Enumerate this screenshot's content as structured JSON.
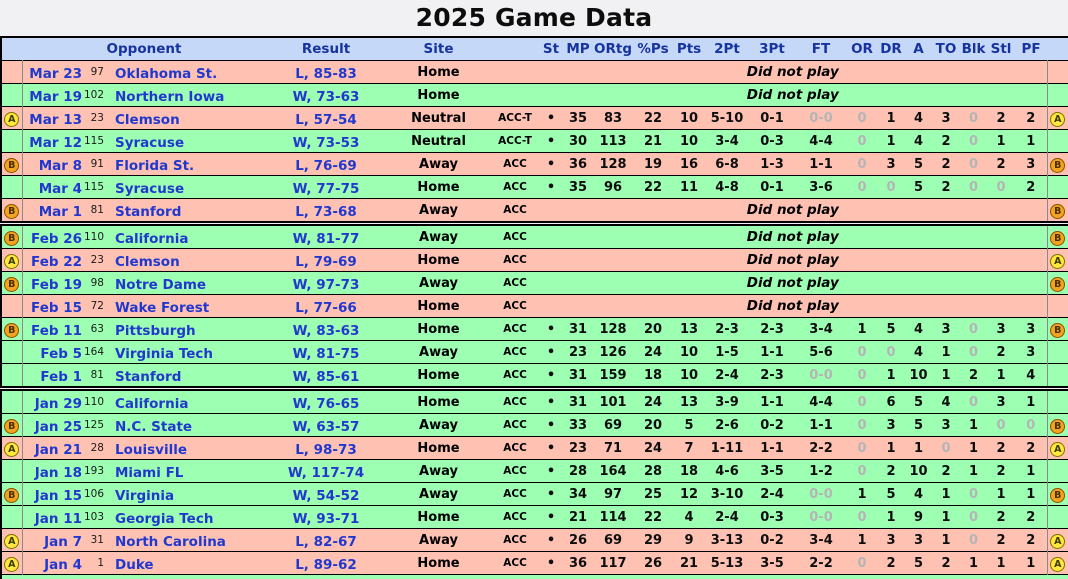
{
  "title": "2025 Game Data",
  "colors": {
    "win_row": "#9cffb2",
    "loss_row": "#ffc2b2",
    "header_bg": "#c6d8f8",
    "header_text": "#16339e",
    "link_blue": "#2138cf",
    "zero_gray": "#b5b5b5",
    "badge_a_bg": "#ffe73d",
    "badge_b_bg": "#f2a41f"
  },
  "table": {
    "headers": {
      "opponent": "Opponent",
      "result": "Result",
      "site": "Site",
      "stats": [
        "St",
        "MP",
        "ORtg",
        "%Ps",
        "Pts",
        "2Pt",
        "3Pt",
        "FT",
        "OR",
        "DR",
        "A",
        "TO",
        "Blk",
        "Stl",
        "PF"
      ]
    },
    "dnp_label": "Did not play",
    "rows": [
      {
        "badge": "",
        "date": "Mar 23",
        "rank": "97",
        "opponent": "Oklahoma St.",
        "result": "L, 85-83",
        "outcome": "loss",
        "site": "Home",
        "conf": "",
        "dnp": true,
        "month_start": false,
        "stats": []
      },
      {
        "badge": "",
        "date": "Mar 19",
        "rank": "102",
        "opponent": "Northern Iowa",
        "result": "W, 73-63",
        "outcome": "win",
        "site": "Home",
        "conf": "",
        "dnp": true,
        "month_start": false,
        "stats": []
      },
      {
        "badge": "A",
        "date": "Mar 13",
        "rank": "23",
        "opponent": "Clemson",
        "result": "L, 57-54",
        "outcome": "loss",
        "site": "Neutral",
        "conf": "ACC-T",
        "dnp": false,
        "month_start": false,
        "stats": [
          "•",
          "35",
          "83",
          "22",
          "10",
          "5-10",
          "0-1",
          "0-0",
          "0",
          "1",
          "4",
          "3",
          "0",
          "2",
          "2"
        ]
      },
      {
        "badge": "",
        "date": "Mar 12",
        "rank": "115",
        "opponent": "Syracuse",
        "result": "W, 73-53",
        "outcome": "win",
        "site": "Neutral",
        "conf": "ACC-T",
        "dnp": false,
        "month_start": false,
        "stats": [
          "•",
          "30",
          "113",
          "21",
          "10",
          "3-4",
          "0-3",
          "4-4",
          "0",
          "1",
          "4",
          "2",
          "0",
          "1",
          "1"
        ]
      },
      {
        "badge": "B",
        "date": "Mar 8",
        "rank": "91",
        "opponent": "Florida St.",
        "result": "L, 76-69",
        "outcome": "loss",
        "site": "Away",
        "conf": "ACC",
        "dnp": false,
        "month_start": false,
        "stats": [
          "•",
          "36",
          "128",
          "19",
          "16",
          "6-8",
          "1-3",
          "1-1",
          "0",
          "3",
          "5",
          "2",
          "0",
          "2",
          "3"
        ]
      },
      {
        "badge": "",
        "date": "Mar 4",
        "rank": "115",
        "opponent": "Syracuse",
        "result": "W, 77-75",
        "outcome": "win",
        "site": "Home",
        "conf": "ACC",
        "dnp": false,
        "month_start": false,
        "stats": [
          "•",
          "35",
          "96",
          "22",
          "11",
          "4-8",
          "0-1",
          "3-6",
          "0",
          "0",
          "5",
          "2",
          "0",
          "0",
          "2"
        ]
      },
      {
        "badge": "B",
        "date": "Mar 1",
        "rank": "81",
        "opponent": "Stanford",
        "result": "L, 73-68",
        "outcome": "loss",
        "site": "Away",
        "conf": "ACC",
        "dnp": true,
        "month_start": false,
        "stats": []
      },
      {
        "badge": "B",
        "date": "Feb 26",
        "rank": "110",
        "opponent": "California",
        "result": "W, 81-77",
        "outcome": "win",
        "site": "Away",
        "conf": "ACC",
        "dnp": true,
        "month_start": true,
        "stats": []
      },
      {
        "badge": "A",
        "date": "Feb 22",
        "rank": "23",
        "opponent": "Clemson",
        "result": "L, 79-69",
        "outcome": "loss",
        "site": "Home",
        "conf": "ACC",
        "dnp": true,
        "month_start": false,
        "stats": []
      },
      {
        "badge": "B",
        "date": "Feb 19",
        "rank": "98",
        "opponent": "Notre Dame",
        "result": "W, 97-73",
        "outcome": "win",
        "site": "Away",
        "conf": "ACC",
        "dnp": true,
        "month_start": false,
        "stats": []
      },
      {
        "badge": "",
        "date": "Feb 15",
        "rank": "72",
        "opponent": "Wake Forest",
        "result": "L, 77-66",
        "outcome": "loss",
        "site": "Home",
        "conf": "ACC",
        "dnp": true,
        "month_start": false,
        "stats": []
      },
      {
        "badge": "B",
        "date": "Feb 11",
        "rank": "63",
        "opponent": "Pittsburgh",
        "result": "W, 83-63",
        "outcome": "win",
        "site": "Home",
        "conf": "ACC",
        "dnp": false,
        "month_start": false,
        "stats": [
          "•",
          "31",
          "128",
          "20",
          "13",
          "2-3",
          "2-3",
          "3-4",
          "1",
          "5",
          "4",
          "3",
          "0",
          "3",
          "3"
        ]
      },
      {
        "badge": "",
        "date": "Feb 5",
        "rank": "164",
        "opponent": "Virginia Tech",
        "result": "W, 81-75",
        "outcome": "win",
        "site": "Away",
        "conf": "ACC",
        "dnp": false,
        "month_start": false,
        "stats": [
          "•",
          "23",
          "126",
          "24",
          "10",
          "1-5",
          "1-1",
          "5-6",
          "0",
          "0",
          "4",
          "1",
          "0",
          "2",
          "3"
        ]
      },
      {
        "badge": "",
        "date": "Feb 1",
        "rank": "81",
        "opponent": "Stanford",
        "result": "W, 85-61",
        "outcome": "win",
        "site": "Home",
        "conf": "ACC",
        "dnp": false,
        "month_start": false,
        "stats": [
          "•",
          "31",
          "159",
          "18",
          "10",
          "2-4",
          "2-3",
          "0-0",
          "0",
          "1",
          "10",
          "1",
          "2",
          "1",
          "4"
        ]
      },
      {
        "badge": "",
        "date": "Jan 29",
        "rank": "110",
        "opponent": "California",
        "result": "W, 76-65",
        "outcome": "win",
        "site": "Home",
        "conf": "ACC",
        "dnp": false,
        "month_start": true,
        "stats": [
          "•",
          "31",
          "101",
          "24",
          "13",
          "3-9",
          "1-1",
          "4-4",
          "0",
          "6",
          "5",
          "4",
          "0",
          "3",
          "1"
        ]
      },
      {
        "badge": "B",
        "date": "Jan 25",
        "rank": "125",
        "opponent": "N.C. State",
        "result": "W, 63-57",
        "outcome": "win",
        "site": "Away",
        "conf": "ACC",
        "dnp": false,
        "month_start": false,
        "stats": [
          "•",
          "33",
          "69",
          "20",
          "5",
          "2-6",
          "0-2",
          "1-1",
          "0",
          "3",
          "5",
          "3",
          "1",
          "0",
          "0"
        ]
      },
      {
        "badge": "A",
        "date": "Jan 21",
        "rank": "28",
        "opponent": "Louisville",
        "result": "L, 98-73",
        "outcome": "loss",
        "site": "Home",
        "conf": "ACC",
        "dnp": false,
        "month_start": false,
        "stats": [
          "•",
          "23",
          "71",
          "24",
          "7",
          "1-11",
          "1-1",
          "2-2",
          "0",
          "1",
          "1",
          "0",
          "1",
          "2",
          "2"
        ]
      },
      {
        "badge": "",
        "date": "Jan 18",
        "rank": "193",
        "opponent": "Miami FL",
        "result": "W, 117-74",
        "outcome": "win",
        "site": "Away",
        "conf": "ACC",
        "dnp": false,
        "month_start": false,
        "stats": [
          "•",
          "28",
          "164",
          "28",
          "18",
          "4-6",
          "3-5",
          "1-2",
          "0",
          "2",
          "10",
          "2",
          "1",
          "2",
          "1"
        ]
      },
      {
        "badge": "B",
        "date": "Jan 15",
        "rank": "106",
        "opponent": "Virginia",
        "result": "W, 54-52",
        "outcome": "win",
        "site": "Away",
        "conf": "ACC",
        "dnp": false,
        "month_start": false,
        "stats": [
          "•",
          "34",
          "97",
          "25",
          "12",
          "3-10",
          "2-4",
          "0-0",
          "1",
          "5",
          "4",
          "1",
          "0",
          "1",
          "1"
        ]
      },
      {
        "badge": "",
        "date": "Jan 11",
        "rank": "103",
        "opponent": "Georgia Tech",
        "result": "W, 93-71",
        "outcome": "win",
        "site": "Home",
        "conf": "ACC",
        "dnp": false,
        "month_start": false,
        "stats": [
          "•",
          "21",
          "114",
          "22",
          "4",
          "2-4",
          "0-3",
          "0-0",
          "0",
          "1",
          "9",
          "1",
          "0",
          "2",
          "2"
        ]
      },
      {
        "badge": "A",
        "date": "Jan 7",
        "rank": "31",
        "opponent": "North Carolina",
        "result": "L, 82-67",
        "outcome": "loss",
        "site": "Away",
        "conf": "ACC",
        "dnp": false,
        "month_start": false,
        "stats": [
          "•",
          "26",
          "69",
          "29",
          "9",
          "3-13",
          "0-2",
          "3-4",
          "1",
          "3",
          "3",
          "1",
          "0",
          "2",
          "2"
        ]
      },
      {
        "badge": "A",
        "date": "Jan 4",
        "rank": "1",
        "opponent": "Duke",
        "result": "L, 89-62",
        "outcome": "loss",
        "site": "Home",
        "conf": "ACC",
        "dnp": false,
        "month_start": false,
        "stats": [
          "•",
          "36",
          "117",
          "26",
          "21",
          "5-13",
          "3-5",
          "2-2",
          "0",
          "2",
          "5",
          "2",
          "1",
          "1",
          "1"
        ]
      }
    ]
  }
}
